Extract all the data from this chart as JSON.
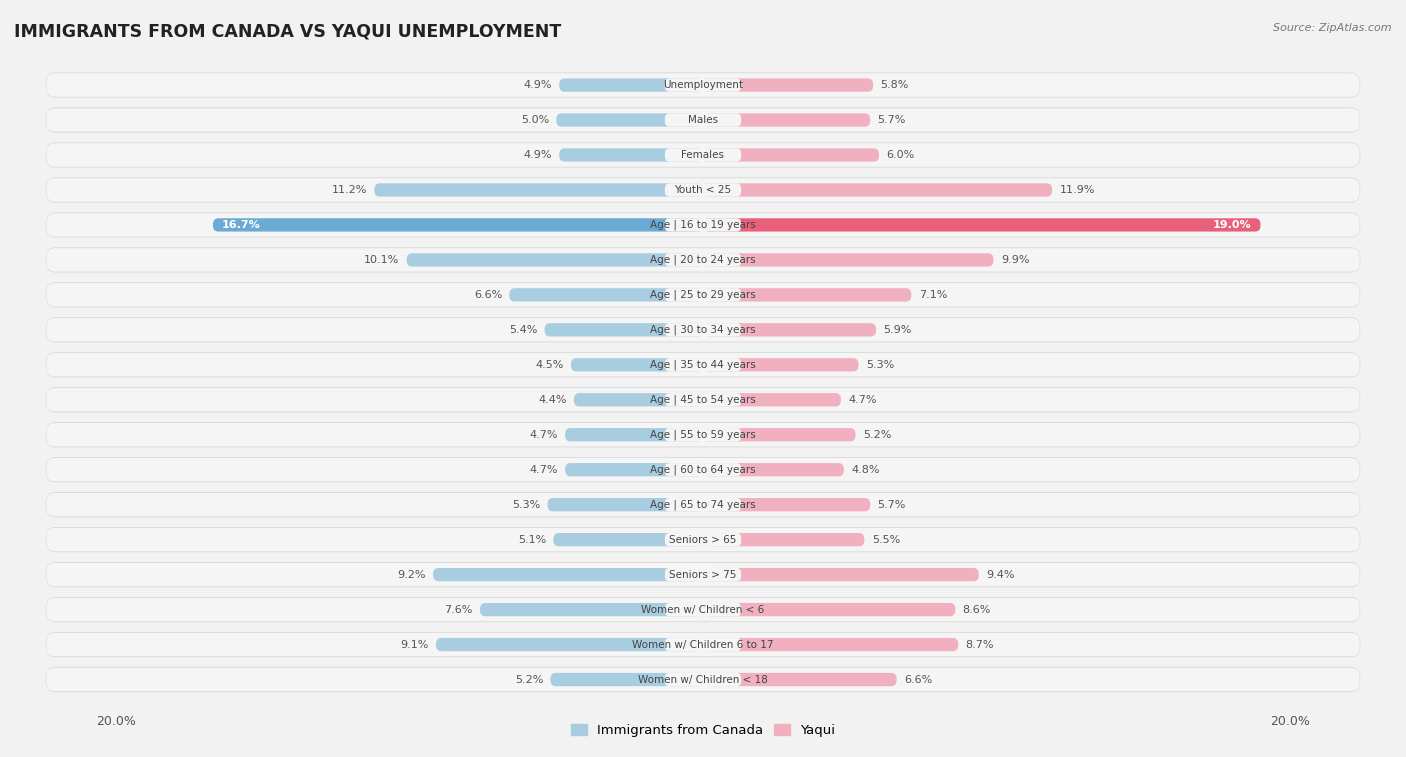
{
  "title": "IMMIGRANTS FROM CANADA VS YAQUI UNEMPLOYMENT",
  "source": "Source: ZipAtlas.com",
  "categories": [
    "Unemployment",
    "Males",
    "Females",
    "Youth < 25",
    "Age | 16 to 19 years",
    "Age | 20 to 24 years",
    "Age | 25 to 29 years",
    "Age | 30 to 34 years",
    "Age | 35 to 44 years",
    "Age | 45 to 54 years",
    "Age | 55 to 59 years",
    "Age | 60 to 64 years",
    "Age | 65 to 74 years",
    "Seniors > 65",
    "Seniors > 75",
    "Women w/ Children < 6",
    "Women w/ Children 6 to 17",
    "Women w/ Children < 18"
  ],
  "left_values": [
    4.9,
    5.0,
    4.9,
    11.2,
    16.7,
    10.1,
    6.6,
    5.4,
    4.5,
    4.4,
    4.7,
    4.7,
    5.3,
    5.1,
    9.2,
    7.6,
    9.1,
    5.2
  ],
  "right_values": [
    5.8,
    5.7,
    6.0,
    11.9,
    19.0,
    9.9,
    7.1,
    5.9,
    5.3,
    4.7,
    5.2,
    4.8,
    5.7,
    5.5,
    9.4,
    8.6,
    8.7,
    6.6
  ],
  "left_color": "#a8cce0",
  "right_color": "#f0b0c0",
  "left_highlight_color": "#6aaad4",
  "right_highlight_color": "#e8607a",
  "highlight_row": 4,
  "max_value": 20.0,
  "legend_left": "Immigrants from Canada",
  "legend_right": "Yaqui",
  "background_color": "#f2f2f2",
  "row_bg": "#e8e8e8",
  "row_inner_bg": "#f8f8f8"
}
